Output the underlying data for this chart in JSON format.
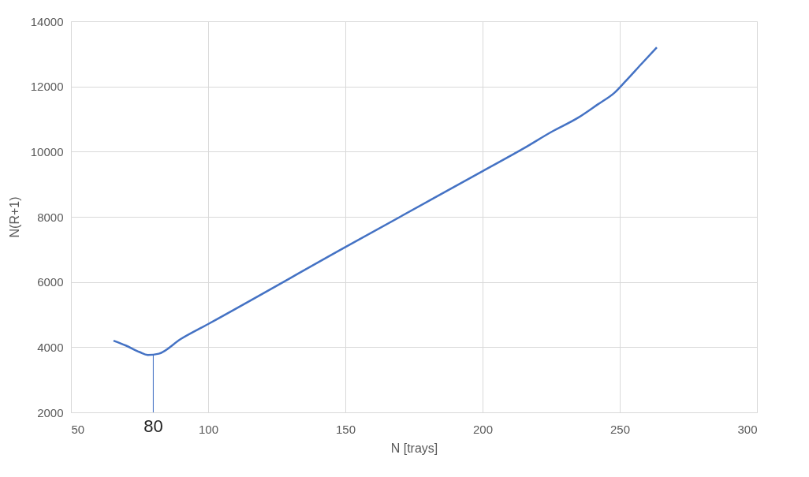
{
  "chart_data": {
    "type": "line",
    "xlabel": "N [trays]",
    "ylabel": "N(R+1)",
    "x": [
      65.5,
      70,
      75,
      78,
      82,
      90,
      100,
      150,
      200,
      215,
      225,
      235,
      242,
      248,
      252,
      258,
      263.5
    ],
    "series": [
      {
        "color": "#4472c4",
        "values": [
          4200,
          4050,
          3850,
          3760,
          3800,
          4250,
          4710,
          7070,
          9400,
          10100,
          10600,
          11050,
          11450,
          11800,
          12150,
          12700,
          13200
        ]
      }
    ],
    "xlim": [
      50,
      300
    ],
    "xticks": [
      50,
      100,
      150,
      200,
      250,
      300
    ],
    "ylim": [
      2000,
      14000
    ],
    "yticks": [
      2000,
      4000,
      6000,
      8000,
      10000,
      12000,
      14000
    ],
    "ref_lines": [
      {
        "axis": "x",
        "value": 80,
        "label": "80",
        "color": "#4472c4"
      }
    ],
    "grid": true,
    "marker": "none",
    "line_style": "solid"
  }
}
